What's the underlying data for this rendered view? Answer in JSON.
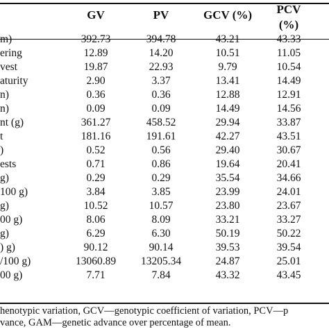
{
  "headers": [
    "GV",
    "PV",
    "GCV (%)",
    "PCV",
    "(%)"
  ],
  "rows": [
    {
      "label": "m)",
      "gv": "392.73",
      "pv": "394.78",
      "gcv": "43.21",
      "pcv": "43.33"
    },
    {
      "label": "ering",
      "gv": "12.89",
      "pv": "14.20",
      "gcv": "10.51",
      "pcv": "11.05"
    },
    {
      "label": "vest",
      "gv": "19.87",
      "pv": "22.93",
      "gcv": "9.79",
      "pcv": "10.54"
    },
    {
      "label": "aturity",
      "gv": "2.90",
      "pv": "3.37",
      "gcv": "13.41",
      "pcv": "14.49"
    },
    {
      "label": "n)",
      "gv": "0.36",
      "pv": "0.36",
      "gcv": "12.88",
      "pcv": "12.91"
    },
    {
      "label": "n)",
      "gv": "0.09",
      "pv": "0.09",
      "gcv": "14.49",
      "pcv": "14.56"
    },
    {
      "label": "nt (g)",
      "gv": "361.27",
      "pv": "458.52",
      "gcv": "29.94",
      "pcv": "33.87"
    },
    {
      "label": "t",
      "gv": "181.16",
      "pv": "191.61",
      "gcv": "42.27",
      "pcv": "43.51"
    },
    {
      "label": ")",
      "gv": "0.52",
      "pv": "0.56",
      "gcv": "29.40",
      "pcv": "30.67"
    },
    {
      "label": "ests",
      "gv": "0.71",
      "pv": "0.86",
      "gcv": "19.64",
      "pcv": "20.41"
    },
    {
      "label": "g)",
      "gv": "0.29",
      "pv": "0.29",
      "gcv": "35.54",
      "pcv": "34.66"
    },
    {
      "label": "100 g)",
      "gv": "3.84",
      "pv": "3.85",
      "gcv": "23.99",
      "pcv": "24.01"
    },
    {
      "label": "g)",
      "gv": "10.52",
      "pv": "10.57",
      "gcv": "23.80",
      "pcv": "23.67"
    },
    {
      "label": "00 g)",
      "gv": "8.06",
      "pv": "8.09",
      "gcv": "33.21",
      "pcv": "33.27"
    },
    {
      "label": "g)",
      "gv": "6.29",
      "pv": "6.30",
      "gcv": "50.19",
      "pcv": "50.22"
    },
    {
      "label": ") g)",
      "gv": "90.12",
      "pv": "90.14",
      "gcv": "39.53",
      "pcv": "39.54"
    },
    {
      "label": "/100 g)",
      "gv": "13060.89",
      "pv": "13205.34",
      "gcv": "24.87",
      "pcv": "25.01"
    },
    {
      "label": "00 g)",
      "gv": "7.71",
      "pv": "7.84",
      "gcv": "43.32",
      "pcv": "43.45"
    }
  ],
  "footnote": [
    "henotypic variation, GCV—genotypic coefficient of variation, PCV—p",
    "vance, GAM—genetic advance over percentage of mean."
  ]
}
